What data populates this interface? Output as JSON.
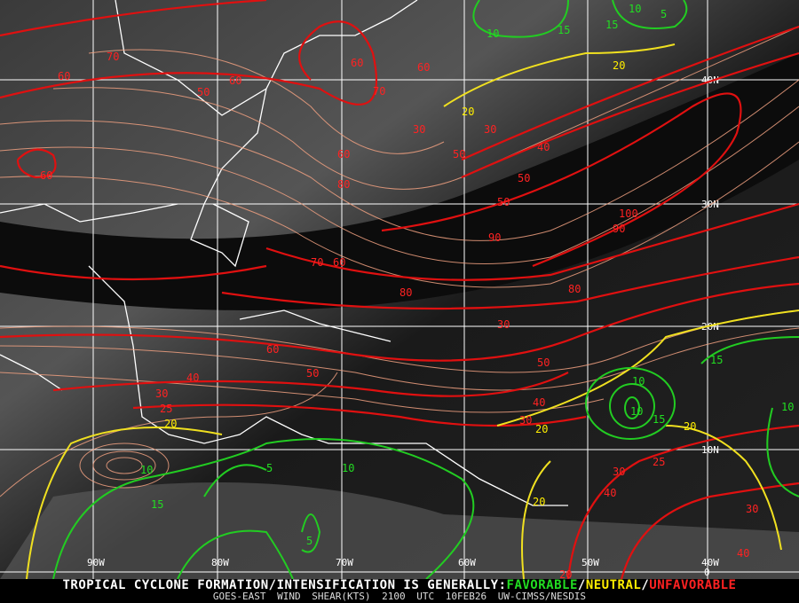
{
  "grid": {
    "longitudes": [
      "90W",
      "80W",
      "70W",
      "60W",
      "50W",
      "40W"
    ],
    "latitudes": [
      "40N",
      "30N",
      "20N",
      "10N",
      "0"
    ]
  },
  "legend": {
    "prefix": "TROPICAL CYCLONE FORMATION/INTENSIFICATION IS GENERALLY:",
    "favorable": "FAVORABLE",
    "sep1": "/",
    "neutral": "NEUTRAL",
    "sep2": "/",
    "unfavorable": "UNFAVORABLE",
    "colors": {
      "favorable": "#22dd22",
      "neutral": "#ffee00",
      "unfavorable": "#ff2222"
    }
  },
  "caption": {
    "product": "GOES-EAST WIND SHEAR(KTS)",
    "time": "2100 UTC",
    "date": "10FEB26",
    "source": "UW-CIMSS/NESDIS"
  },
  "contour_labels": {
    "red": [
      "70",
      "60",
      "50",
      "60",
      "60",
      "60",
      "70",
      "60",
      "80",
      "50",
      "50",
      "30",
      "30",
      "40",
      "50",
      "100",
      "90",
      "90",
      "80",
      "70",
      "60",
      "80",
      "60",
      "50",
      "40",
      "30",
      "50",
      "40",
      "30",
      "25",
      "30",
      "25",
      "20",
      "40",
      "30",
      "30",
      "40",
      "60"
    ],
    "yellow": [
      "20",
      "20",
      "20",
      "20",
      "20",
      "20"
    ],
    "green": [
      "10",
      "15",
      "15",
      "10",
      "5",
      "10",
      "15",
      "10",
      "5",
      "10",
      "15",
      "15",
      "10",
      "5",
      "10"
    ]
  }
}
